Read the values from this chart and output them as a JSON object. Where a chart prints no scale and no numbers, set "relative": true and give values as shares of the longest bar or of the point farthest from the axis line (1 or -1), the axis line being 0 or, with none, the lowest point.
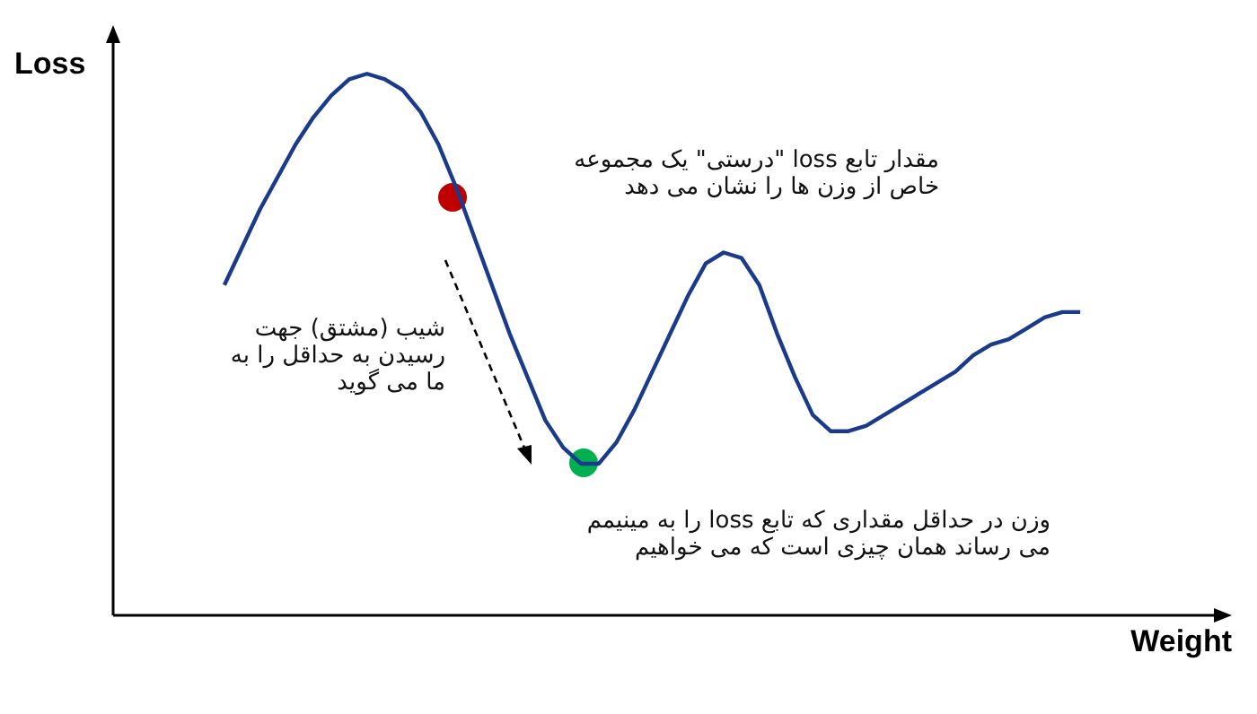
{
  "chart_data": {
    "type": "line",
    "relative": true,
    "xlabel": "Weight",
    "ylabel": "Loss",
    "categories": [
      null,
      null,
      null,
      null,
      null,
      null,
      null,
      null,
      null,
      null,
      null,
      null,
      null,
      null,
      null,
      null,
      null,
      null,
      null,
      null,
      null,
      null,
      null,
      null,
      null,
      null,
      null,
      null,
      null,
      null,
      null,
      null,
      null,
      null,
      null,
      null,
      null,
      null,
      null,
      null,
      null,
      null,
      null,
      null,
      null,
      null,
      null,
      null,
      null
    ],
    "series": [
      {
        "color": "#1a3a8c",
        "values": [
          0.61,
          0.68,
          0.75,
          0.81,
          0.87,
          0.92,
          0.96,
          0.99,
          1,
          0.99,
          0.97,
          0.93,
          0.87,
          0.79,
          0.7,
          0.61,
          0.52,
          0.44,
          0.36,
          0.31,
          0.28,
          0.28,
          0.32,
          0.38,
          0.45,
          0.52,
          0.59,
          0.65,
          0.67,
          0.66,
          0.61,
          0.52,
          0.44,
          0.37,
          0.34,
          0.34,
          0.35,
          0.37,
          0.39,
          0.41,
          0.43,
          0.45,
          0.48,
          0.5,
          0.51,
          0.53,
          0.55,
          0.56,
          0.56
        ]
      }
    ],
    "annotations": [
      "مقدار تابع loss \"درستی\" یک مجموعه\nخاص از وزن ها را نشان می دهد",
      "شیب (مشتق) جهت\nرسیدن به حداقل را به\nما می گوید",
      "وزن در حداقل مقداری که تابع loss را به مینیمم\nمی رساند همان چیزی است که می خواهیم"
    ]
  }
}
